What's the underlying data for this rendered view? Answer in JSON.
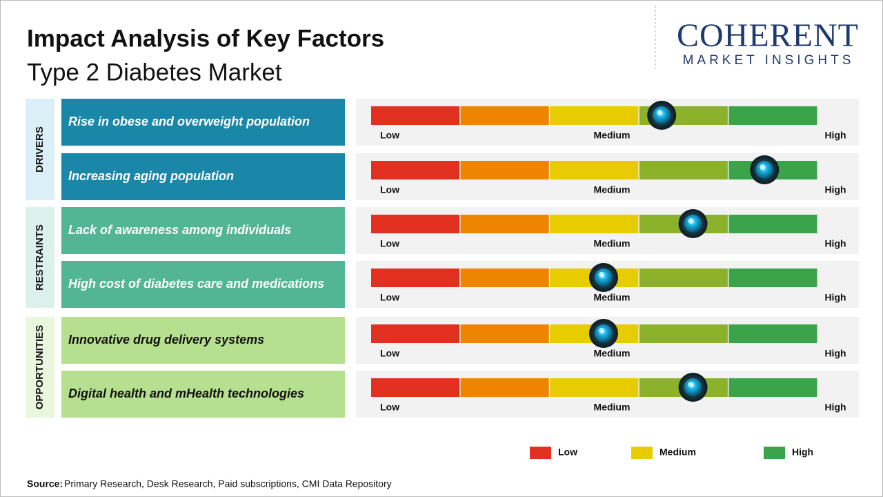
{
  "header": {
    "title": "Impact Analysis of Key Factors",
    "subtitle": "Type 2 Diabetes Market"
  },
  "logo": {
    "name": "COHERENT",
    "tagline": "MARKET INSIGHTS"
  },
  "scale": {
    "low": "Low",
    "medium": "Medium",
    "high": "High",
    "xlim": [
      0,
      100
    ],
    "colors": [
      "#e1301f",
      "#ee8400",
      "#e6cc00",
      "#8cb12a",
      "#3ba44a"
    ]
  },
  "groups": [
    {
      "label": "DRIVERS",
      "bg": "#dbeff7",
      "box": "#1a86a8",
      "text_color": "#ffffff",
      "factors": [
        {
          "text": "Rise in obese and overweight population",
          "impact": 65
        },
        {
          "text": "Increasing aging population",
          "impact": 88
        }
      ]
    },
    {
      "label": "RESTRAINTS",
      "bg": "#dcf1eb",
      "box": "#52b594",
      "text_color": "#ffffff",
      "factors": [
        {
          "text": "Lack of awareness among individuals",
          "impact": 72
        },
        {
          "text": "High cost of diabetes care and medications",
          "impact": 52
        }
      ]
    },
    {
      "label": "OPPORTUNITIES",
      "bg": "#eaf6dd",
      "box": "#b6e08f",
      "text_color": "#111111",
      "factors": [
        {
          "text": "Innovative drug delivery systems",
          "impact": 52
        },
        {
          "text": "Digital health and mHealth technologies",
          "impact": 72
        }
      ]
    }
  ],
  "legend": [
    {
      "label": "Low",
      "color": "#e1301f"
    },
    {
      "label": "Medium",
      "color": "#e6cc00"
    },
    {
      "label": "High",
      "color": "#3ba44a"
    }
  ],
  "source": {
    "label": "Source:",
    "text": "Primary Research, Desk Research, Paid subscriptions, CMI Data Repository"
  }
}
